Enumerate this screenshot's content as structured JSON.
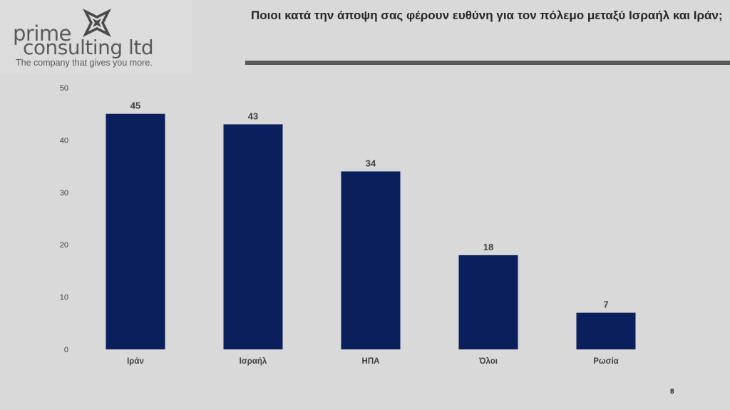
{
  "logo": {
    "line1": "prime",
    "line2": "consulting ltd",
    "tagline": "The company that gives you more."
  },
  "title": "Ποιοι κατά την άποψη σας φέρουν ευθύνη για τον πόλεμο μεταξύ Ισραήλ και Ιράν;",
  "page_number": "8",
  "colors": {
    "bar": "#0a1f5c",
    "background": "#d9d9d9",
    "rule": "#595959"
  },
  "chart_data": {
    "type": "bar",
    "title": "Ποιοι κατά την άποψη σας φέρουν ευθύνη για τον πόλεμο μεταξύ Ισραήλ και Ιράν;",
    "categories": [
      "Ιράν",
      "Ισραήλ",
      "ΗΠΑ",
      "Όλοι",
      "Ρωσία"
    ],
    "values": [
      45,
      43,
      34,
      18,
      7
    ],
    "ylim": [
      0,
      50
    ],
    "yticks": [
      0,
      10,
      20,
      30,
      40,
      50
    ],
    "grid": false,
    "legend": "none",
    "data_labels": true
  }
}
